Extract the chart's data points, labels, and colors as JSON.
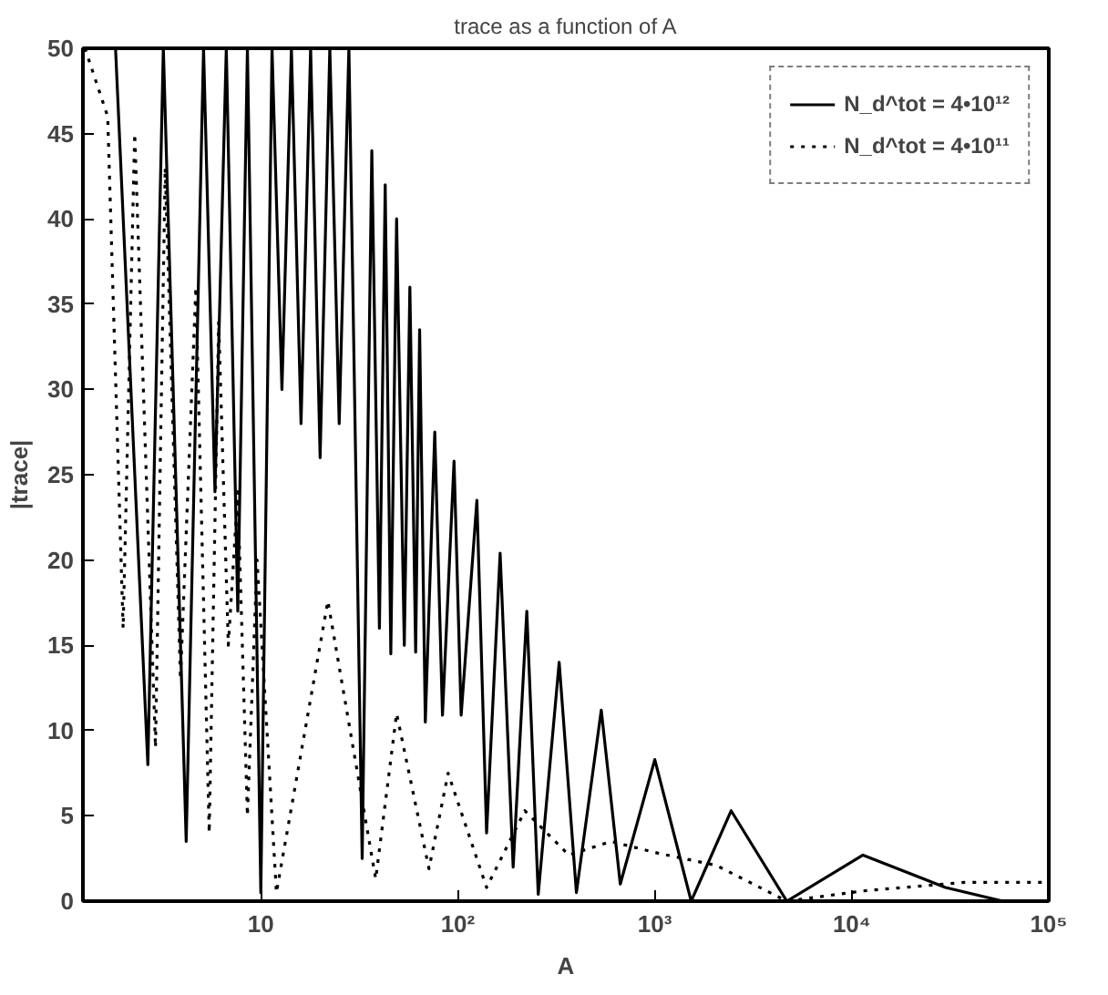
{
  "chart_data": {
    "type": "line",
    "title": "trace as a function of A",
    "xlabel": "A",
    "ylabel": "|trace|",
    "log": "x",
    "xlim": [
      1.25,
      100000
    ],
    "xticks": [
      10,
      {
        "value": 100,
        "label": "10²"
      },
      {
        "value": 1000,
        "label": "10³"
      },
      {
        "value": 10000,
        "label": "10⁴"
      },
      {
        "value": 100000,
        "label": "10⁵"
      }
    ],
    "ylim": [
      0,
      50
    ],
    "yticks": [
      0,
      5,
      10,
      15,
      20,
      25,
      30,
      35,
      40,
      45,
      50
    ],
    "grid": false,
    "legend": "top right",
    "series": [
      {
        "name": "N_d^tot = 4•10¹²",
        "color": "#000000",
        "line_style": "solid",
        "x": [
          1.83,
          2.67,
          3.2,
          4.18,
          5.12,
          5.85,
          6.68,
          7.64,
          8.55,
          10,
          11.4,
          12.8,
          14.3,
          16.0,
          17.9,
          20.0,
          22.4,
          25.0,
          28.0,
          32.7,
          36.6,
          40.0,
          42.8,
          45.7,
          48.9,
          53.5,
          57.1,
          61.1,
          64.0,
          68.4,
          76.4,
          83.6,
          95.7,
          104,
          125,
          140,
          164,
          191,
          224,
          256,
          327,
          400,
          535,
          668,
          1000,
          1530,
          2440,
          4680,
          11400,
          29900,
          58500,
          100000
        ],
        "values": [
          50,
          8,
          50,
          3.5,
          50,
          24,
          50,
          17,
          50,
          0.5,
          50,
          30,
          50,
          28,
          50,
          26,
          50,
          28,
          50,
          2.5,
          44,
          16,
          42,
          14.5,
          40,
          15,
          36,
          14.6,
          33.5,
          10.5,
          27.5,
          10.9,
          25.8,
          10.9,
          23.5,
          4,
          20.4,
          2,
          17,
          0.4,
          14,
          0.5,
          11.2,
          1,
          8.3,
          0,
          5.3,
          0,
          2.7,
          0.8,
          0,
          0
        ]
      },
      {
        "name": "N_d^tot = 4•10¹¹",
        "color": "#000000",
        "line_style": "dotted",
        "x": [
          1.28,
          1.67,
          2.0,
          2.29,
          2.92,
          3.27,
          3.91,
          4.68,
          5.47,
          6.11,
          6.84,
          7.64,
          8.55,
          9.57,
          12.0,
          21.9,
          38.3,
          48.9,
          71.4,
          89.3,
          140,
          219,
          366,
          598,
          1050,
          2050,
          4680,
          11400,
          37400,
          95000
        ],
        "values": [
          50,
          46,
          16,
          45,
          9,
          43,
          13,
          36,
          4,
          34,
          15,
          24,
          5,
          20,
          0.5,
          17.6,
          1.3,
          11,
          1.9,
          7.5,
          0.8,
          5.3,
          2.7,
          3.5,
          2.8,
          2.1,
          0,
          0.6,
          1.1,
          1.1
        ]
      }
    ]
  }
}
